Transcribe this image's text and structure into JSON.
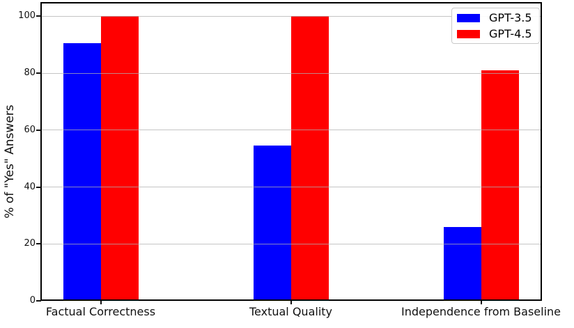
{
  "chart_data": {
    "type": "bar",
    "ylabel": "% of \"Yes\" Answers",
    "categories": [
      "Factual Correctness",
      "Textual Quality",
      "Independence from Baseline"
    ],
    "series": [
      {
        "name": "GPT-3.5",
        "color": "#0000ff",
        "values": [
          90.5,
          54.5,
          26
        ]
      },
      {
        "name": "GPT-4.5",
        "color": "#ff0000",
        "values": [
          100,
          100,
          81
        ]
      }
    ],
    "yticks": [
      0,
      20,
      40,
      60,
      80,
      100
    ],
    "ylim": [
      0,
      105
    ],
    "grid": true,
    "grid_axis": "y",
    "legend_position": "upper right",
    "axis_color": "#000000",
    "grid_color": "#b0b0b0"
  }
}
